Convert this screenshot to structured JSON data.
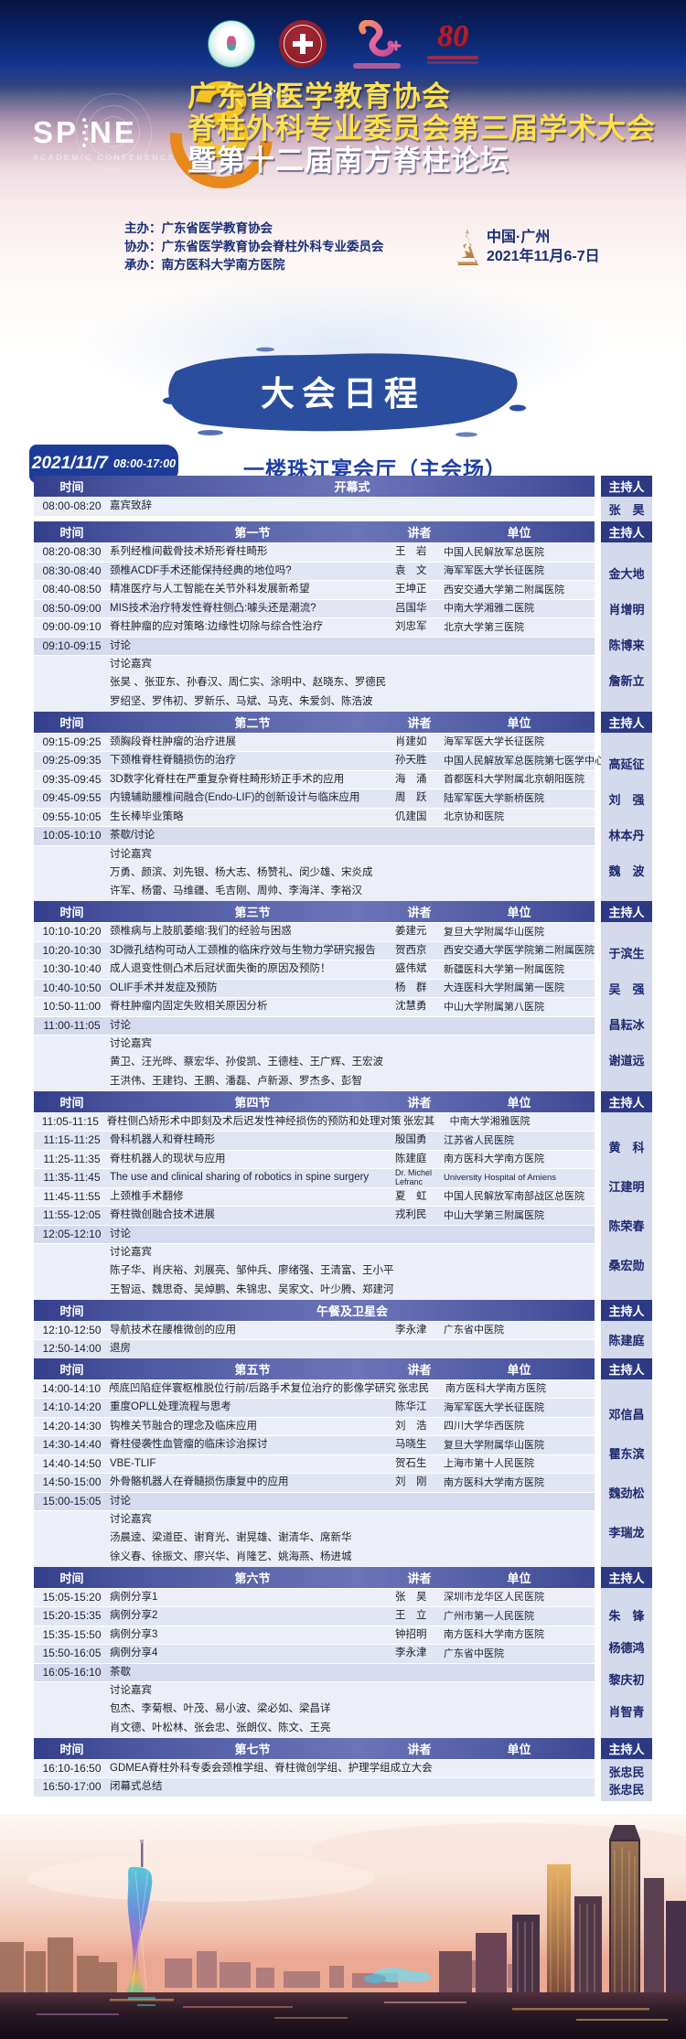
{
  "hero": {
    "logo_left": "SP",
    "logo_right": "NE",
    "logo_subtitle": "ACADEMIC CONFERENCE",
    "edition_number": "3",
    "edition_suffix": "rd",
    "logo4_text": "80",
    "title_line1": "广东省医学教育协会",
    "title_line2": "脊柱外科专业委员会第三届学术大会",
    "title_line3": "暨第十二届南方脊柱论坛",
    "organizers": [
      {
        "label": "主办：",
        "value": "广东省医学教育协会"
      },
      {
        "label": "协办：",
        "value": "广东省医学教育协会脊柱外科专业委员会"
      },
      {
        "label": "承办：",
        "value": "南方医科大学南方医院"
      }
    ],
    "location": "中国·广州",
    "dates": "2021年11月6-7日"
  },
  "banner": {
    "title": "大会日程"
  },
  "colors": {
    "navy": "#12307f",
    "header_gradient_mid": "#6b74b7",
    "accent_yellow": "#ffe14d",
    "banner_blue": "#2a4e9d"
  },
  "schedule": {
    "date": "2021/11/7",
    "time_range": "08:00-17:00",
    "venue": "一楼珠江宴会厅（主会场）",
    "columns": {
      "time": "时间",
      "speaker": "讲者",
      "org": "单位",
      "moderator": "主持人"
    },
    "sections": [
      {
        "title": "开幕式",
        "speaker_cols": false,
        "moderators": [
          "张　昊"
        ],
        "rows": [
          {
            "time": "08:00-08:20",
            "topic": "嘉宾致辞"
          }
        ]
      },
      {
        "title": "第一节",
        "speaker_cols": true,
        "moderators": [
          "金大地",
          "肖增明",
          "陈博来",
          "詹新立"
        ],
        "rows": [
          {
            "time": "08:20-08:30",
            "topic": "系列经椎间截骨技术矫形脊柱畸形",
            "speaker": "王　岩",
            "org": "中国人民解放军总医院"
          },
          {
            "time": "08:30-08:40",
            "topic": "颈椎ACDF手术还能保持经典的地位吗?",
            "speaker": "袁　文",
            "org": "海军军医大学长征医院"
          },
          {
            "time": "08:40-08:50",
            "topic": "精准医疗与人工智能在关节外科发展新希望",
            "speaker": "王坤正",
            "org": "西安交通大学第二附属医院"
          },
          {
            "time": "08:50-09:00",
            "topic": "MIS技术治疗特发性脊柱侧凸:噱头还是潮流?",
            "speaker": "吕国华",
            "org": "中南大学湘雅二医院"
          },
          {
            "time": "09:00-09:10",
            "topic": "脊柱肿瘤的应对策略:边缘性切除与综合性治疗",
            "speaker": "刘忠军",
            "org": "北京大学第三医院"
          },
          {
            "time": "09:10-09:15",
            "topic": "讨论",
            "type": "discussion"
          },
          {
            "topic": "讨论嘉宾",
            "type": "label"
          },
          {
            "topic": "张昊 、张亚东、孙春汉、周仁实、涂明中、赵晓东、罗德民",
            "type": "guests"
          },
          {
            "topic": "罗绍坚、罗伟初、罗新乐、马斌、马克、朱爱剑、陈浩波",
            "type": "guests"
          }
        ]
      },
      {
        "title": "第二节",
        "speaker_cols": true,
        "moderators": [
          "高延征",
          "刘　强",
          "林本丹",
          "魏　波"
        ],
        "rows": [
          {
            "time": "09:15-09:25",
            "topic": "颈胸段脊柱肿瘤的治疗进展",
            "speaker": "肖建如",
            "org": "海军军医大学长征医院"
          },
          {
            "time": "09:25-09:35",
            "topic": "下颈椎脊柱脊髓损伤的治疗",
            "speaker": "孙天胜",
            "org": "中国人民解放军总医院第七医学中心"
          },
          {
            "time": "09:35-09:45",
            "topic": "3D数字化脊柱在严重复杂脊柱畸形矫正手术的应用",
            "speaker": "海　涌",
            "org": "首都医科大学附属北京朝阳医院"
          },
          {
            "time": "09:45-09:55",
            "topic": "内镜辅助腰椎间融合(Endo-LIF)的创新设计与临床应用",
            "speaker": "周　跃",
            "org": "陆军军医大学新桥医院"
          },
          {
            "time": "09:55-10:05",
            "topic": "生长棒毕业策略",
            "speaker": "仉建国",
            "org": "北京协和医院"
          },
          {
            "time": "10:05-10:10",
            "topic": "茶歇/讨论",
            "type": "discussion"
          },
          {
            "topic": "讨论嘉宾",
            "type": "label"
          },
          {
            "topic": "万勇、颜滨、刘先银、杨大志、杨赞礼、闵少雄、宋炎成",
            "type": "guests"
          },
          {
            "topic": "许军、杨雷、马维疆、毛吉刚、周帅、李海洋、李裕汉",
            "type": "guests"
          }
        ]
      },
      {
        "title": "第三节",
        "speaker_cols": true,
        "moderators": [
          "于滨生",
          "吴　强",
          "昌耘冰",
          "谢道远"
        ],
        "rows": [
          {
            "time": "10:10-10:20",
            "topic": "颈椎病与上肢肌萎缩:我们的经验与困惑",
            "speaker": "姜建元",
            "org": "复旦大学附属华山医院"
          },
          {
            "time": "10:20-10:30",
            "topic": "3D微孔结构可动人工颈椎的临床疗效与生物力学研究报告",
            "speaker": "贺西京",
            "org": "西安交通大学医学院第二附属医院"
          },
          {
            "time": "10:30-10:40",
            "topic": "成人退变性侧凸术后冠状面失衡的原因及预防！",
            "speaker": "盛伟斌",
            "org": "新疆医科大学第一附属医院"
          },
          {
            "time": "10:40-10:50",
            "topic": "OLIF手术并发症及预防",
            "speaker": "杨　群",
            "org": "大连医科大学附属第一医院"
          },
          {
            "time": "10:50-11:00",
            "topic": "脊柱肿瘤内固定失败相关原因分析",
            "speaker": "沈慧勇",
            "org": "中山大学附属第八医院"
          },
          {
            "time": "11:00-11:05",
            "topic": "讨论",
            "type": "discussion"
          },
          {
            "topic": "讨论嘉宾",
            "type": "label"
          },
          {
            "topic": "黄卫、汪光晔、蔡宏华、孙俊凯、王德桂、王广辉、王宏波",
            "type": "guests"
          },
          {
            "topic": "王洪伟、王建钧、王鹏、潘磊、卢新源、罗杰多、彭智",
            "type": "guests"
          }
        ]
      },
      {
        "title": "第四节",
        "speaker_cols": true,
        "moderators": [
          "黄　科",
          "江建明",
          "陈荣春",
          "桑宏勋"
        ],
        "rows": [
          {
            "time": "11:05-11:15",
            "topic": "脊柱侧凸矫形术中即刻及术后迟发性神经损伤的预防和处理对策",
            "speaker": "张宏其",
            "org": "中南大学湘雅医院"
          },
          {
            "time": "11:15-11:25",
            "topic": "骨科机器人和脊柱畸形",
            "speaker": "殷国勇",
            "org": "江苏省人民医院"
          },
          {
            "time": "11:25-11:35",
            "topic": "脊柱机器人的现状与应用",
            "speaker": "陈建庭",
            "org": "南方医科大学南方医院"
          },
          {
            "time": "11:35-11:45",
            "topic": "The use and  clinical sharing of robotics in spine surgery",
            "speaker": "Dr. Michel Lefranc",
            "org": "University Hospital of Amiens",
            "latin": true
          },
          {
            "time": "11:45-11:55",
            "topic": "上颈椎手术翻修",
            "speaker": "夏　虹",
            "org": "中国人民解放军南部战区总医院"
          },
          {
            "time": "11:55-12:05",
            "topic": "脊柱微创融合技术进展",
            "speaker": "戎利民",
            "org": "中山大学第三附属医院"
          },
          {
            "time": "12:05-12:10",
            "topic": "讨论",
            "type": "discussion"
          },
          {
            "topic": "讨论嘉宾",
            "type": "label"
          },
          {
            "topic": "陈子华、肖庆裕、刘展亮、邹仲兵、廖绪强、王清富、王小平",
            "type": "guests"
          },
          {
            "topic": "王智运、魏思奇、吴焯鹏、朱锦忠、吴家文、叶少腾、郑建河",
            "type": "guests"
          }
        ]
      },
      {
        "title": "午餐及卫星会",
        "speaker_cols": false,
        "moderators": [
          "陈建庭"
        ],
        "rows": [
          {
            "time": "12:10-12:50",
            "topic": "导航技术在腰椎微创的应用",
            "speaker": "李永津",
            "org": "广东省中医院"
          },
          {
            "time": "12:50-14:00",
            "topic": "退房"
          }
        ]
      },
      {
        "title": "第五节",
        "speaker_cols": true,
        "moderators": [
          "邓信昌",
          "瞿东滨",
          "魏劲松",
          "李瑞龙"
        ],
        "rows": [
          {
            "time": "14:00-14:10",
            "topic": "颅底凹陷症伴寰枢椎脱位行前/后路手术复位治疗的影像学研究",
            "speaker": "张忠民",
            "org": "南方医科大学南方医院"
          },
          {
            "time": "14:10-14:20",
            "topic": "重度OPLL处理流程与思考",
            "speaker": "陈华江",
            "org": "海军军医大学长征医院"
          },
          {
            "time": "14:20-14:30",
            "topic": "钩椎关节融合的理念及临床应用",
            "speaker": "刘　浩",
            "org": "四川大学华西医院"
          },
          {
            "time": "14:30-14:40",
            "topic": "脊柱侵袭性血管瘤的临床诊治探讨",
            "speaker": "马晓生",
            "org": "复旦大学附属华山医院"
          },
          {
            "time": "14:40-14:50",
            "topic": "VBE-TLIF",
            "speaker": "贺石生",
            "org": "上海市第十人民医院"
          },
          {
            "time": "14:50-15:00",
            "topic": "外骨骼机器人在脊髓损伤康复中的应用",
            "speaker": "刘　刚",
            "org": "南方医科大学南方医院"
          },
          {
            "time": "15:00-15:05",
            "topic": "讨论",
            "type": "discussion"
          },
          {
            "topic": "讨论嘉宾",
            "type": "label"
          },
          {
            "topic": "汤晨逵、梁道臣、谢育光、谢晃雄、谢清华、席新华",
            "type": "guests"
          },
          {
            "topic": "徐义春、徐振文、廖兴华、肖隆艺、姚海燕、杨进城",
            "type": "guests"
          }
        ]
      },
      {
        "title": "第六节",
        "speaker_cols": true,
        "moderators": [
          "朱　锋",
          "杨德鸿",
          "黎庆初",
          "肖智青"
        ],
        "rows": [
          {
            "time": "15:05-15:20",
            "topic": "病例分享1",
            "speaker": "张　昊",
            "org": "深圳市龙华区人民医院"
          },
          {
            "time": "15:20-15:35",
            "topic": "病例分享2",
            "speaker": "王　立",
            "org": "广州市第一人民医院"
          },
          {
            "time": "15:35-15:50",
            "topic": "病例分享3",
            "speaker": "钟招明",
            "org": "南方医科大学南方医院"
          },
          {
            "time": "15:50-16:05",
            "topic": "病例分享4",
            "speaker": "李永津",
            "org": "广东省中医院"
          },
          {
            "time": "16:05-16:10",
            "topic": "茶歇",
            "type": "discussion"
          },
          {
            "topic": "讨论嘉宾",
            "type": "label"
          },
          {
            "topic": "包杰、李菊根、叶茂、易小波、梁必如、梁昌详",
            "type": "guests"
          },
          {
            "topic": "肖文德、叶松林、张会忠、张朗仪、陈文、王亮",
            "type": "guests"
          }
        ]
      },
      {
        "title": "第七节",
        "speaker_cols": true,
        "moderators": [
          "张忠民",
          "张忠民"
        ],
        "rows": [
          {
            "time": "16:10-16:50",
            "topic": "GDMEA脊柱外科专委会颈椎学组、脊柱微创学组、护理学组成立大会"
          },
          {
            "time": "16:50-17:00",
            "topic": "闭幕式总结"
          }
        ]
      }
    ]
  }
}
